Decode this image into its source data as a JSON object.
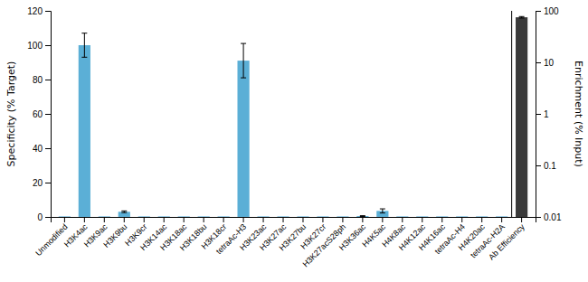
{
  "chart_data": {
    "type": "bar",
    "categories": [
      "Unmodified",
      "H3K4ac",
      "H3K9ac",
      "H3K9bu",
      "H3K9cr",
      "H3K14ac",
      "H3K18ac",
      "H3K18bu",
      "H3K18cr",
      "tetraAc-H3",
      "H3K23ac",
      "H3K27ac",
      "H3K27bu",
      "H3K27cr",
      "H3K27acS28ph",
      "H3K36ac",
      "H4K5ac",
      "H4K8ac",
      "H4K12ac",
      "H4K16ac",
      "tetraAc-H4",
      "H4K20ac",
      "tetraAc-H2A",
      "Ab Efficiency"
    ],
    "series": [
      {
        "color": "#5bafd6",
        "values": [
          0.3,
          100.0,
          0.3,
          3.0,
          0.3,
          0.3,
          0.3,
          0.3,
          0.3,
          91.0,
          0.3,
          0.3,
          0.3,
          0.3,
          0.3,
          0.5,
          3.5,
          0.3,
          0.3,
          0.3,
          0.3,
          0.3,
          0.3,
          null
        ],
        "errors": [
          0.0,
          7.0,
          0.0,
          0.5,
          0.0,
          0.0,
          0.0,
          0.0,
          0.0,
          10.0,
          0.0,
          0.0,
          0.0,
          0.0,
          0.0,
          0.2,
          1.2,
          0.0,
          0.0,
          0.0,
          0.0,
          0.0,
          0.0,
          null
        ]
      },
      {
        "color": "#3a3a3a",
        "axis": "y2",
        "values": [
          null,
          null,
          null,
          null,
          null,
          null,
          null,
          null,
          null,
          null,
          null,
          null,
          null,
          null,
          null,
          null,
          null,
          null,
          null,
          null,
          null,
          null,
          null,
          75.0
        ],
        "errors": [
          null,
          null,
          null,
          null,
          null,
          null,
          null,
          null,
          null,
          null,
          null,
          null,
          null,
          null,
          null,
          null,
          null,
          null,
          null,
          null,
          null,
          null,
          null,
          2.5
        ]
      }
    ],
    "ylabel": "Specificity (% Target)",
    "y2label": "Enrichment (% Input)",
    "ylim": [
      0,
      120
    ],
    "yticks": [
      0,
      20,
      40,
      60,
      80,
      100,
      120
    ],
    "y2lim": [
      0.01,
      100
    ],
    "y2ticks": [
      0.01,
      0.1,
      1,
      10,
      100
    ],
    "log": "y2",
    "grid": false
  }
}
